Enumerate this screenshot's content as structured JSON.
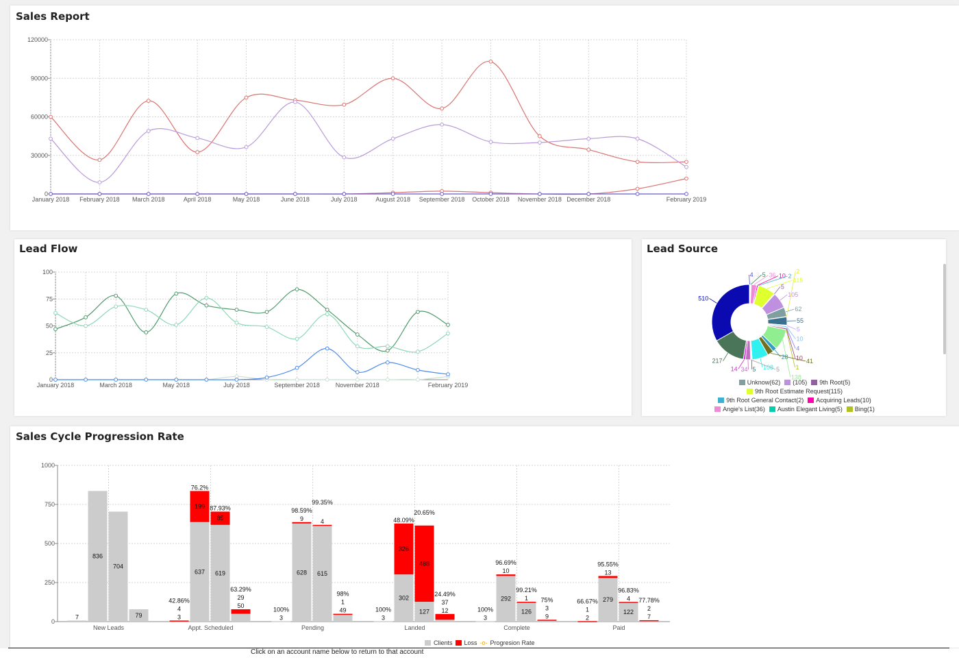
{
  "sales_report": {
    "title": "Sales Report"
  },
  "lead_flow": {
    "title": "Lead Flow"
  },
  "lead_source": {
    "title": "Lead Source",
    "legend": [
      {
        "label": "Unknow(62)",
        "color": "#7f9fa0"
      },
      {
        "label": "(105)",
        "color": "#c090e0"
      },
      {
        "label": "9th Root(5)",
        "color": "#9060a0"
      },
      {
        "label": "9th Root Estimate Request(115)",
        "color": "#dfff2f"
      },
      {
        "label": "9th Root General Contact(2)",
        "color": "#40b0d0"
      },
      {
        "label": "Acquiring Leads(10)",
        "color": "#ff00aa"
      },
      {
        "label": "Angie's List(36)",
        "color": "#f08ad8"
      },
      {
        "label": "Austin Elegant Living(5)",
        "color": "#00d0b0"
      },
      {
        "label": "Bing(1)",
        "color": "#b0c020"
      }
    ]
  },
  "sales_cycle": {
    "title": "Sales Cycle Progression Rate",
    "legend": {
      "clients": "Clients",
      "loss": "Loss",
      "rate": "Progresion Rate"
    },
    "footer_text": "Click on an account name below to return to that account"
  },
  "chart_data": [
    {
      "type": "line",
      "id": "sales",
      "categories": [
        "January 2018",
        "February 2018",
        "March 2018",
        "April 2018",
        "May 2018",
        "June 2018",
        "July 2018",
        "August 2018",
        "September 2018",
        "October 2018",
        "November 2018",
        "December 2018",
        "",
        "February 2019"
      ],
      "ylim": [
        0,
        120000
      ],
      "yticks": [
        0,
        30000,
        60000,
        90000,
        120000
      ],
      "grid": true,
      "series": [
        {
          "color": "#d9736f",
          "values": [
            60000,
            26500,
            72500,
            32500,
            75000,
            73000,
            69500,
            90000,
            66500,
            103000,
            45000,
            34500,
            25000,
            25000
          ]
        },
        {
          "color": "#b99ad8",
          "values": [
            43000,
            9000,
            49000,
            43500,
            36500,
            71500,
            28500,
            43000,
            54000,
            40500,
            40000,
            43000,
            43000,
            21000
          ]
        },
        {
          "color": "#d9736f",
          "values": [
            0,
            0,
            0,
            0,
            0,
            0,
            0,
            1000,
            2200,
            1000,
            0,
            0,
            4000,
            12000
          ]
        },
        {
          "color": "#6a5acd",
          "values": [
            0,
            0,
            0,
            0,
            0,
            0,
            0,
            0,
            0,
            0,
            0,
            0,
            0,
            0
          ]
        }
      ]
    },
    {
      "type": "line",
      "id": "leadflow",
      "categories": [
        "January 2018",
        "",
        "March 2018",
        "",
        "May 2018",
        "",
        "July 2018",
        "",
        "September 2018",
        "",
        "November 2018",
        "",
        "",
        "February 2019"
      ],
      "ylim": [
        0,
        100
      ],
      "yticks": [
        0,
        25,
        50,
        75,
        100
      ],
      "grid": true,
      "series": [
        {
          "color": "#4d9a6a",
          "values": [
            47,
            58,
            78,
            44,
            80,
            69,
            65,
            63,
            84,
            65,
            42,
            27,
            63,
            51
          ]
        },
        {
          "color": "#8dd8b8",
          "values": [
            62,
            50,
            68,
            65,
            51,
            76,
            53,
            49,
            38,
            61,
            31,
            31,
            26,
            43
          ]
        },
        {
          "color": "#c8e0d0",
          "values": [
            0,
            0,
            0,
            0,
            0,
            0,
            3,
            0,
            0,
            0,
            0,
            0,
            0,
            3
          ]
        },
        {
          "color": "#4a8af0",
          "values": [
            0,
            0,
            0,
            0,
            0,
            0,
            0,
            2,
            11,
            29,
            7,
            16,
            9,
            5
          ]
        }
      ]
    },
    {
      "type": "pie",
      "id": "leadsource",
      "donut": true,
      "slices": [
        {
          "label": "4",
          "value": 4,
          "color": "#5050e0"
        },
        {
          "label": "3",
          "value": 3,
          "color": "#e8e6d8"
        },
        {
          "label": "5",
          "value": 5,
          "color": "#2e8b57"
        },
        {
          "label": "36",
          "value": 36,
          "color": "#f08ad8"
        },
        {
          "label": "10",
          "value": 10,
          "color": "#ff00aa"
        },
        {
          "label": "2",
          "value": 2,
          "color": "#40b0d0"
        },
        {
          "label": "115",
          "value": 115,
          "color": "#dfff2f"
        },
        {
          "label": "5",
          "value": 5,
          "color": "#9060a0"
        },
        {
          "label": "105",
          "value": 105,
          "color": "#c090e0"
        },
        {
          "label": "62",
          "value": 62,
          "color": "#7f9fa0"
        },
        {
          "label": "2",
          "value": 2,
          "color": "#e0f040"
        },
        {
          "label": "55",
          "value": 55,
          "color": "#3a7090"
        },
        {
          "label": "5",
          "value": 5,
          "color": "#c0a0ff"
        },
        {
          "label": "10",
          "value": 10,
          "color": "#80c0ff"
        },
        {
          "label": "4",
          "value": 4,
          "color": "#8080ff"
        },
        {
          "label": "10",
          "value": 10,
          "color": "#a04060"
        },
        {
          "label": "1",
          "value": 1,
          "color": "#b0c020"
        },
        {
          "label": "138",
          "value": 138,
          "color": "#90ee90"
        },
        {
          "label": "28",
          "value": 28,
          "color": "#30a0c0"
        },
        {
          "label": "41",
          "value": 41,
          "color": "#707020"
        },
        {
          "label": "108",
          "value": 108,
          "color": "#30f0f0"
        },
        {
          "label": "5",
          "value": 5,
          "color": "#308080"
        },
        {
          "label": "5",
          "value": 5,
          "color": "#a0a0a0"
        },
        {
          "label": "34",
          "value": 34,
          "color": "#c070c0"
        },
        {
          "label": "14",
          "value": 14,
          "color": "#e020e0"
        },
        {
          "label": "217",
          "value": 217,
          "color": "#4a7558"
        },
        {
          "label": "510",
          "value": 510,
          "color": "#0a0ab0"
        }
      ]
    },
    {
      "type": "bar",
      "id": "cycle",
      "stacked": true,
      "ylim": [
        0,
        1000
      ],
      "yticks": [
        0,
        250,
        500,
        750,
        1000
      ],
      "grid": true,
      "colors": {
        "clients": "#cccccc",
        "loss": "#ff0000",
        "rate": "#ffa500"
      },
      "groups": [
        {
          "name": "New Leads",
          "bars": [
            {
              "clients": 7,
              "loss": 0,
              "rate": ""
            },
            {
              "clients": 836,
              "loss": 0,
              "rate": ""
            },
            {
              "clients": 704,
              "loss": 0,
              "rate": ""
            },
            {
              "clients": 79,
              "loss": 0,
              "rate": ""
            }
          ]
        },
        {
          "name": "Appt. Scheduled",
          "bars": [
            {
              "clients": 3,
              "loss": 4,
              "rate": "42.86%"
            },
            {
              "clients": 637,
              "loss": 199,
              "rate": "76.2%"
            },
            {
              "clients": 619,
              "loss": 85,
              "rate": "87.93%"
            },
            {
              "clients": 50,
              "loss": 29,
              "rate": "63.29%"
            }
          ]
        },
        {
          "name": "Pending",
          "bars": [
            {
              "clients": 3,
              "loss": 0,
              "rate": "100%"
            },
            {
              "clients": 628,
              "loss": 9,
              "rate": "98.59%"
            },
            {
              "clients": 615,
              "loss": 4,
              "rate": "99.35%"
            },
            {
              "clients": 49,
              "loss": 1,
              "rate": "98%"
            }
          ]
        },
        {
          "name": "Landed",
          "bars": [
            {
              "clients": 3,
              "loss": 0,
              "rate": "100%"
            },
            {
              "clients": 302,
              "loss": 326,
              "rate": "48.09%"
            },
            {
              "clients": 127,
              "loss": 488,
              "rate": "20.65%"
            },
            {
              "clients": 12,
              "loss": 37,
              "rate": "24.49%"
            }
          ]
        },
        {
          "name": "Complete",
          "bars": [
            {
              "clients": 3,
              "loss": 0,
              "rate": "100%"
            },
            {
              "clients": 292,
              "loss": 10,
              "rate": "96.69%"
            },
            {
              "clients": 126,
              "loss": 1,
              "rate": "99.21%"
            },
            {
              "clients": 9,
              "loss": 3,
              "rate": "75%"
            }
          ]
        },
        {
          "name": "Paid",
          "bars": [
            {
              "clients": 2,
              "loss": 1,
              "rate": "66.67%"
            },
            {
              "clients": 279,
              "loss": 13,
              "rate": "95.55%"
            },
            {
              "clients": 122,
              "loss": 4,
              "rate": "96.83%"
            },
            {
              "clients": 7,
              "loss": 2,
              "rate": "77.78%"
            }
          ]
        }
      ]
    }
  ]
}
